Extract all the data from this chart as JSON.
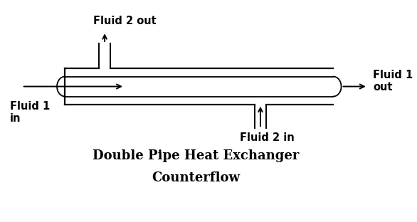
{
  "title_line1": "Double Pipe Heat Exchanger",
  "title_line2": "Counterflow",
  "fluid1_in_label": "Fluid 1\nin",
  "fluid1_out_label": "Fluid 1\nout",
  "fluid2_in_label": "Fluid 2 in",
  "fluid2_out_label": "Fluid 2 out",
  "bg_color": "#ffffff",
  "line_color": "#000000",
  "title_fontsize": 13,
  "label_fontsize": 10.5,
  "fig_width": 5.86,
  "fig_height": 3.12,
  "dpi": 100,
  "lw_outer": 1.6,
  "lw_inner": 1.3,
  "lw_port": 1.4,
  "lw_arrow": 1.4
}
